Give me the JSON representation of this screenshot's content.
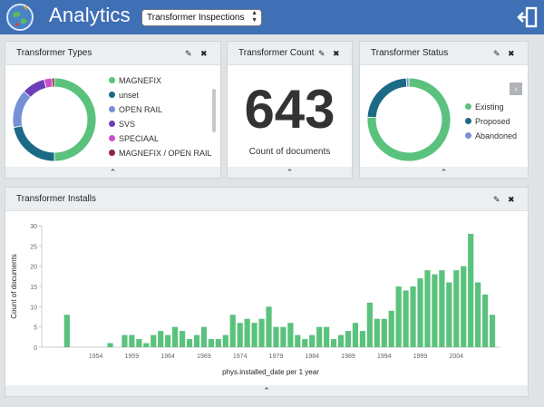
{
  "app": {
    "title": "Analytics",
    "dashboard_select": "Transformer Inspections"
  },
  "colors": {
    "topbar": "#3f6fb5",
    "green": "#5ac27c",
    "navy": "#1c6a86",
    "blue": "#7590d6",
    "purple": "#6c3fb8",
    "magenta": "#c94fc7",
    "darkred": "#8e2436",
    "gray": "#7d7d7d"
  },
  "panels": {
    "types": {
      "title": "Transformer Types",
      "legend": [
        {
          "label": "MAGNEFIX",
          "color": "#5ac27c"
        },
        {
          "label": "unset",
          "color": "#1c6a86"
        },
        {
          "label": "OPEN RAIL",
          "color": "#7590d6"
        },
        {
          "label": "SVS",
          "color": "#6c3fb8"
        },
        {
          "label": "SPECIAAL",
          "color": "#c94fc7"
        },
        {
          "label": "MAGNEFIX / OPEN RAIL",
          "color": "#8e2436"
        }
      ]
    },
    "count": {
      "title": "Transformer Count",
      "value": "643",
      "caption": "Count of documents"
    },
    "status": {
      "title": "Transformer Status",
      "legend": [
        {
          "label": "Existing",
          "color": "#5ac27c"
        },
        {
          "label": "Proposed",
          "color": "#1c6a86"
        },
        {
          "label": "Abandoned",
          "color": "#7590d6"
        }
      ]
    },
    "installs": {
      "title": "Transformer Installs"
    }
  },
  "icons": {
    "edit": "pencil-icon",
    "close": "close-icon",
    "collapse": "chevron-up-icon",
    "exit": "exit-icon",
    "next": "chevron-right-icon"
  },
  "chart_data": [
    {
      "type": "pie",
      "title": "Transformer Types",
      "donut": true,
      "labels": [
        "MAGNEFIX",
        "unset",
        "OPEN RAIL",
        "SVS",
        "SPECIAAL",
        "MAGNEFIX / OPEN RAIL"
      ],
      "values": [
        50,
        22,
        15,
        9,
        3,
        1
      ]
    },
    {
      "type": "pie",
      "title": "Transformer Status",
      "donut": true,
      "labels": [
        "Existing",
        "Proposed",
        "Abandoned"
      ],
      "values": [
        76,
        23,
        1
      ]
    },
    {
      "type": "bar",
      "title": "Transformer Installs",
      "xlabel": "phys.installed_date per 1 year",
      "ylabel": "Count of documents",
      "ylim": [
        0,
        30
      ],
      "yticks": [
        0,
        5,
        10,
        15,
        20,
        25,
        30
      ],
      "xticks": [
        "1954",
        "1959",
        "1964",
        "1969",
        "1974",
        "1979",
        "1984",
        "1989",
        "1994",
        "1999",
        "2004"
      ],
      "x": [
        1950,
        1956,
        1958,
        1959,
        1960,
        1961,
        1962,
        1963,
        1964,
        1965,
        1966,
        1967,
        1968,
        1969,
        1970,
        1971,
        1972,
        1973,
        1974,
        1975,
        1976,
        1977,
        1978,
        1979,
        1980,
        1981,
        1982,
        1983,
        1984,
        1985,
        1986,
        1987,
        1988,
        1989,
        1990,
        1991,
        1992,
        1993,
        1994,
        1995,
        1996,
        1997,
        1998,
        1999,
        2000,
        2001,
        2002,
        2003,
        2004,
        2005,
        2006,
        2007,
        2008,
        2009
      ],
      "values": [
        8,
        1,
        3,
        3,
        2,
        1,
        3,
        4,
        3,
        5,
        4,
        2,
        3,
        5,
        2,
        2,
        3,
        8,
        6,
        7,
        6,
        7,
        10,
        5,
        5,
        6,
        3,
        2,
        3,
        5,
        5,
        2,
        3,
        4,
        6,
        4,
        11,
        7,
        7,
        9,
        15,
        14,
        15,
        17,
        19,
        18,
        19,
        16,
        19,
        20,
        28,
        16,
        13,
        8
      ]
    }
  ]
}
